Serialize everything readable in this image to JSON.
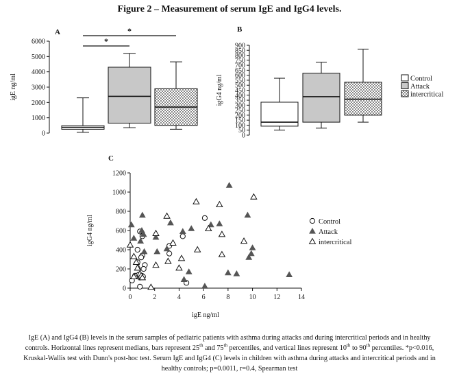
{
  "figure": {
    "title": "Figure 2 – Measurement of serum IgE and IgG4 levels.",
    "caption": {
      "line1": "IgE (A) and IgG4 (B) levels in the serum samples of pediatric patients with asthma during attacks and during intercritical periods and in healthy",
      "line2a": "controls. Horizontal lines represent medians, bars represent 25",
      "sup1": "th",
      "line2b": " and 75",
      "sup2": "th",
      "line2c": " percentiles, and vertical lines represent 10",
      "sup3": "th",
      "line2d": " to 90",
      "sup4": "th",
      "line2e": " percentiles. *p<0.016,",
      "line3": "Kruskal-Wallis test with Dunn's post-hoc test. Serum IgE and IgG4 (C) levels in children with asthma during attacks and intercritical periods and in",
      "line4": "healthy controls; p=0.0011, r=0.4, Spearman test"
    }
  },
  "colors": {
    "control": "#ffffff",
    "attack": "#c8c8c8",
    "intercritical": "#bdbdbd",
    "line": "#111111"
  },
  "chart_data": [
    {
      "panel": "A",
      "type": "box",
      "ylabel": "igE ng/ml",
      "ylim": [
        0,
        6000
      ],
      "yticks": [
        0,
        1000,
        2000,
        3000,
        4000,
        5000,
        6000
      ],
      "groups": [
        {
          "name": "Control",
          "whisker_low": 50,
          "q1": 250,
          "median": 380,
          "q3": 480,
          "whisker_high": 2300,
          "fill": "white"
        },
        {
          "name": "Attack",
          "whisker_low": 350,
          "q1": 650,
          "median": 2400,
          "q3": 4300,
          "whisker_high": 5200,
          "fill": "gray"
        },
        {
          "name": "intercritical",
          "whisker_low": 250,
          "q1": 500,
          "median": 1700,
          "q3": 2900,
          "whisker_high": 4650,
          "fill": "pattern"
        }
      ],
      "significance": [
        {
          "from": "Control",
          "to": "Attack",
          "label": "*"
        },
        {
          "from": "Control",
          "to": "intercritical",
          "label": "*"
        }
      ]
    },
    {
      "panel": "B",
      "type": "box",
      "ylabel": "igG4 ng/ml",
      "ylim": [
        0,
        900
      ],
      "yticks": [
        0,
        50,
        100,
        150,
        200,
        250,
        300,
        350,
        400,
        450,
        500,
        550,
        600,
        650,
        700,
        750,
        800,
        850,
        900
      ],
      "groups": [
        {
          "name": "Control",
          "whisker_low": 50,
          "q1": 90,
          "median": 130,
          "q3": 330,
          "whisker_high": 570,
          "fill": "white"
        },
        {
          "name": "Attack",
          "whisker_low": 70,
          "q1": 130,
          "median": 385,
          "q3": 620,
          "whisker_high": 730,
          "fill": "gray"
        },
        {
          "name": "intercritical",
          "whisker_low": 130,
          "q1": 200,
          "median": 360,
          "q3": 530,
          "whisker_high": 860,
          "fill": "pattern"
        }
      ],
      "legend": [
        "Control",
        "Attack",
        "intercritical"
      ]
    },
    {
      "panel": "C",
      "type": "scatter",
      "xlabel": "igE ng/ml",
      "ylabel": "igG4 ng/ml",
      "xlim": [
        0,
        14
      ],
      "ylim": [
        0,
        1200
      ],
      "xticks": [
        0,
        2,
        4,
        6,
        8,
        10,
        12,
        14
      ],
      "yticks": [
        0,
        200,
        400,
        600,
        800,
        1000,
        1200
      ],
      "legend": [
        "Control",
        "Attack",
        "intercritical"
      ],
      "series": [
        {
          "name": "Control",
          "marker": "circle",
          "points": [
            [
              0.8,
              590
            ],
            [
              1.0,
              540
            ],
            [
              0.6,
              400
            ],
            [
              1.0,
              340
            ],
            [
              0.9,
              320
            ],
            [
              0.6,
              270
            ],
            [
              1.2,
              240
            ],
            [
              1.1,
              200
            ],
            [
              0.4,
              130
            ],
            [
              0.55,
              130
            ],
            [
              0.7,
              140
            ],
            [
              0.95,
              130
            ],
            [
              1.05,
              120
            ],
            [
              0.8,
              110
            ],
            [
              0.15,
              80
            ],
            [
              0.8,
              15
            ],
            [
              3.2,
              440
            ],
            [
              3.2,
              360
            ],
            [
              4.3,
              540
            ],
            [
              4.6,
              55
            ],
            [
              6.1,
              730
            ]
          ]
        },
        {
          "name": "Attack",
          "marker": "filled-triangle",
          "points": [
            [
              0.1,
              660
            ],
            [
              0.3,
              520
            ],
            [
              0.85,
              490
            ],
            [
              1.0,
              760
            ],
            [
              1.1,
              560
            ],
            [
              0.95,
              600
            ],
            [
              1.15,
              380
            ],
            [
              0.7,
              210
            ],
            [
              0.9,
              110
            ],
            [
              2.1,
              530
            ],
            [
              2.2,
              380
            ],
            [
              3.0,
              410
            ],
            [
              3.3,
              680
            ],
            [
              4.3,
              590
            ],
            [
              4.4,
              90
            ],
            [
              4.8,
              170
            ],
            [
              5.0,
              620
            ],
            [
              6.1,
              20
            ],
            [
              6.6,
              660
            ],
            [
              7.3,
              670
            ],
            [
              8.0,
              160
            ],
            [
              8.1,
              1070
            ],
            [
              8.7,
              150
            ],
            [
              9.6,
              760
            ],
            [
              9.7,
              320
            ],
            [
              9.9,
              360
            ],
            [
              10.0,
              420
            ],
            [
              13.0,
              140
            ]
          ]
        },
        {
          "name": "intercritical",
          "marker": "open-triangle",
          "points": [
            [
              0.0,
              450
            ],
            [
              0.3,
              330
            ],
            [
              0.5,
              270
            ],
            [
              0.6,
              210
            ],
            [
              0.8,
              150
            ],
            [
              0.3,
              120
            ],
            [
              0.9,
              130
            ],
            [
              1.0,
              110
            ],
            [
              1.7,
              10
            ],
            [
              2.1,
              570
            ],
            [
              2.1,
              240
            ],
            [
              3.0,
              750
            ],
            [
              3.1,
              280
            ],
            [
              3.5,
              470
            ],
            [
              4.0,
              210
            ],
            [
              4.2,
              310
            ],
            [
              5.4,
              900
            ],
            [
              5.5,
              400
            ],
            [
              6.4,
              620
            ],
            [
              7.3,
              870
            ],
            [
              7.5,
              560
            ],
            [
              7.5,
              350
            ],
            [
              9.3,
              490
            ],
            [
              10.1,
              950
            ]
          ]
        }
      ]
    }
  ]
}
